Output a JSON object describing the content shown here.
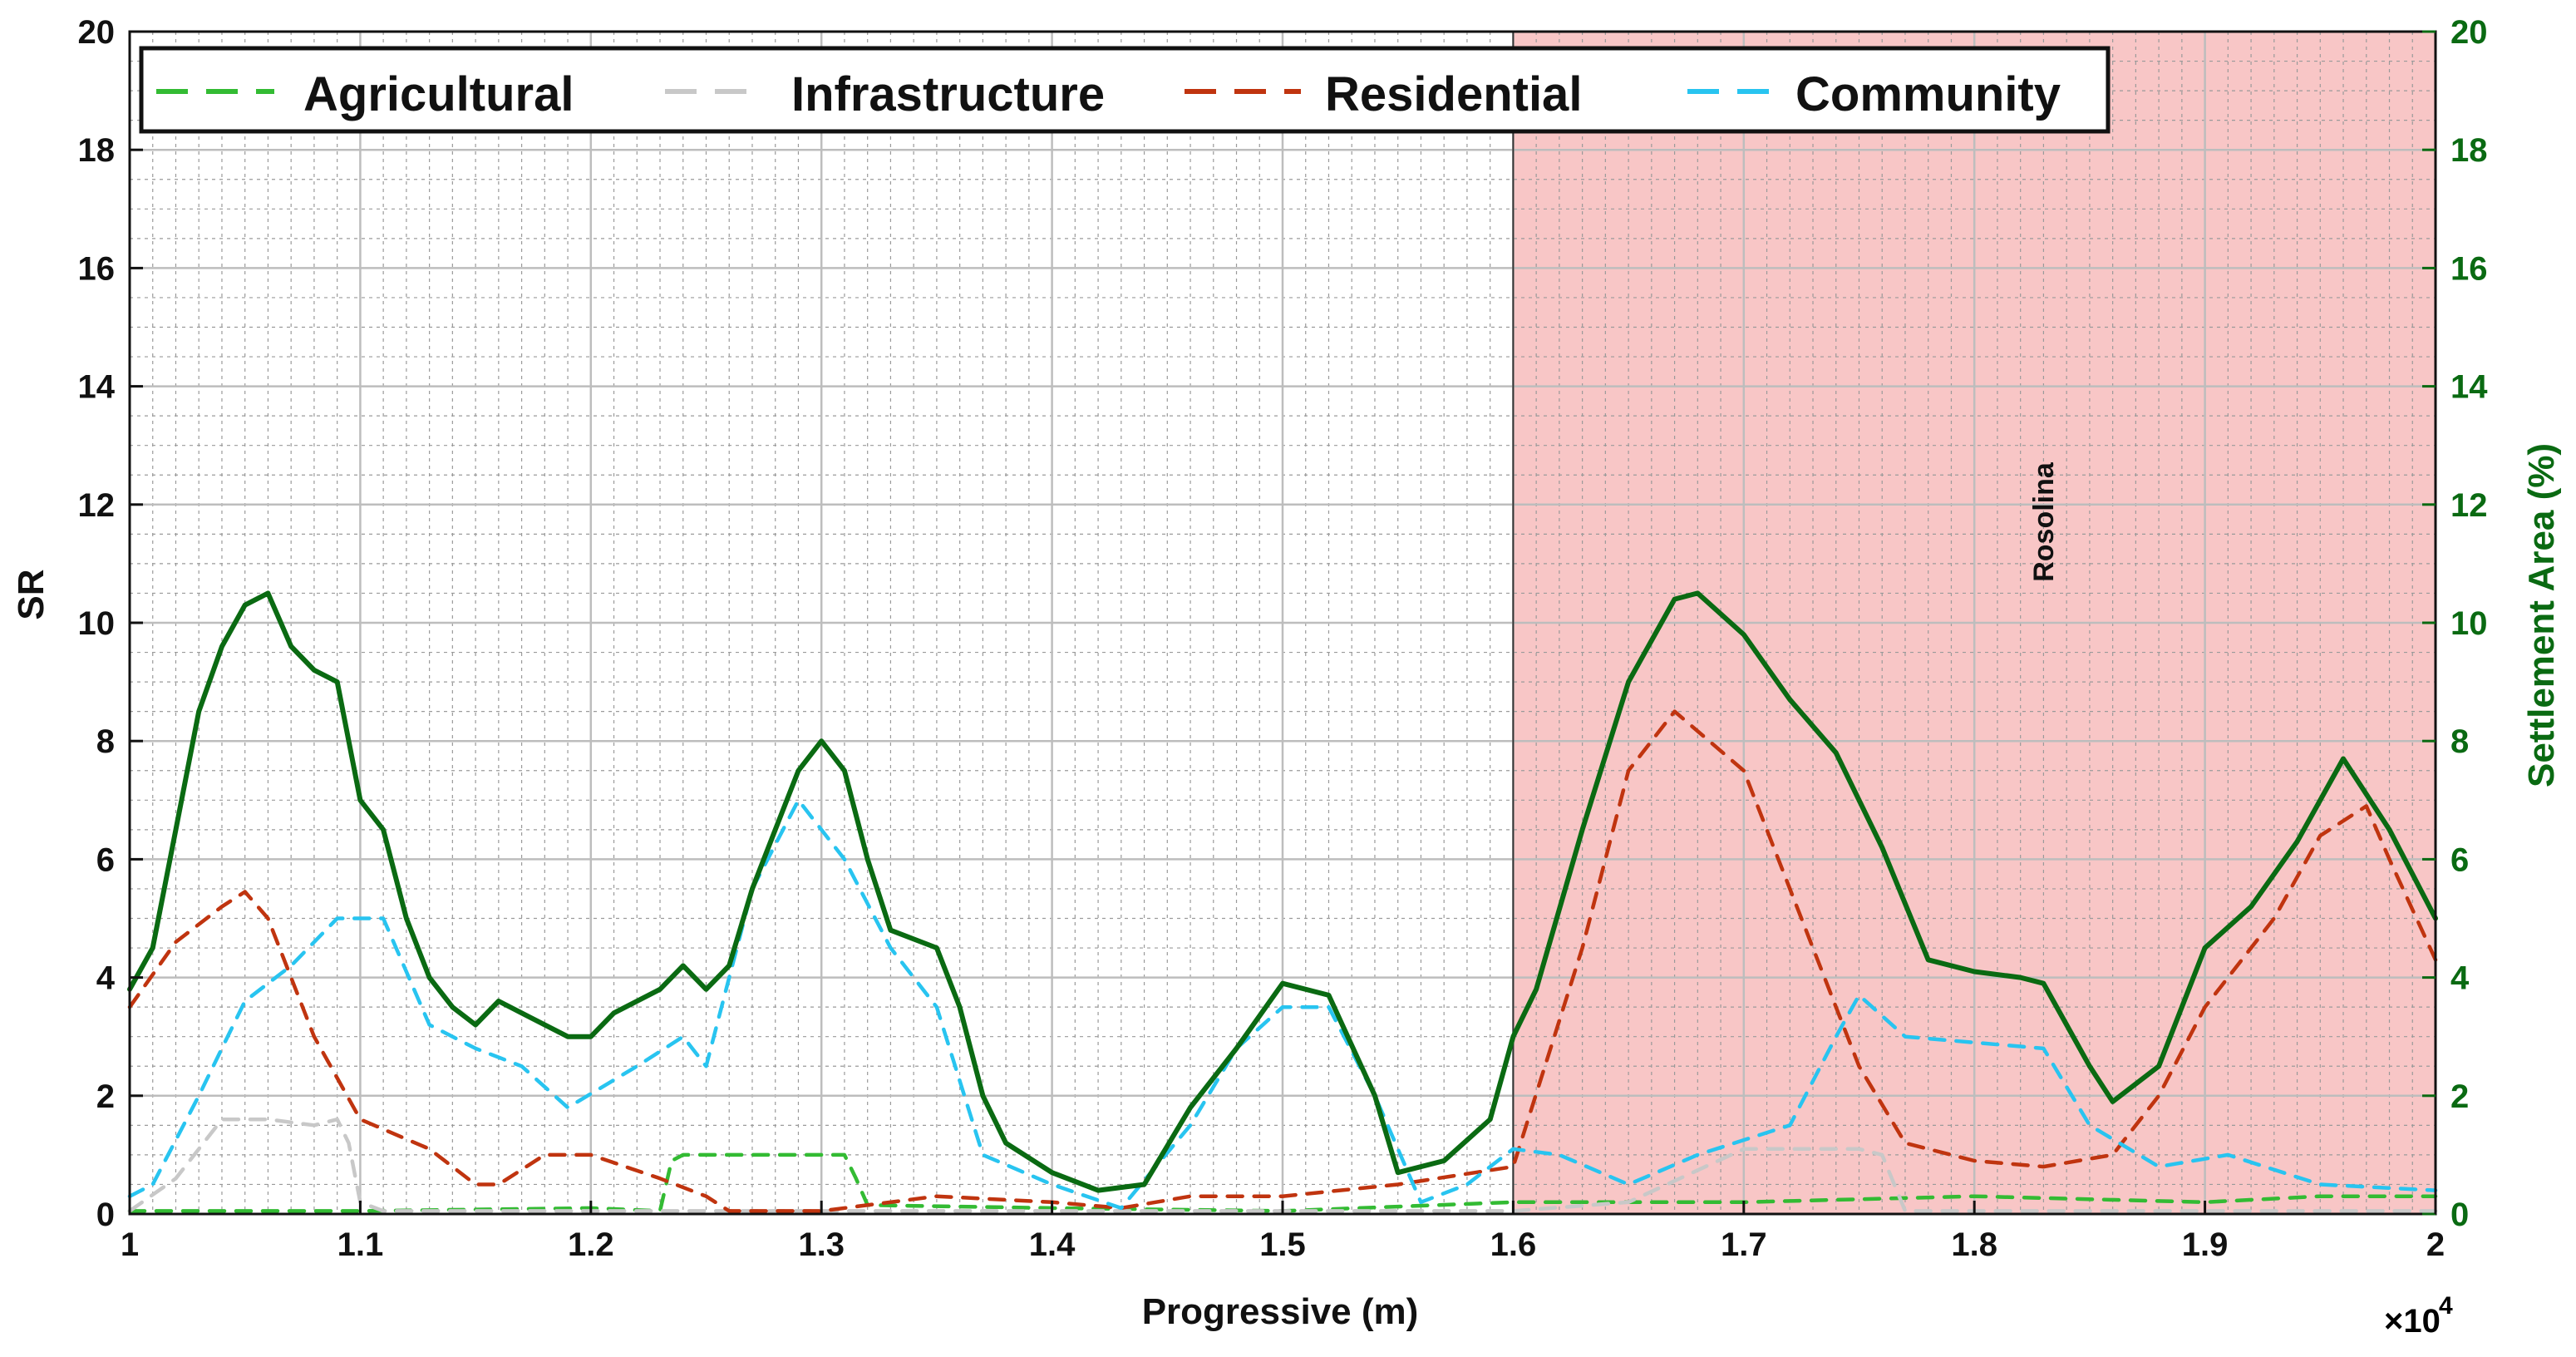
{
  "chart_data": {
    "type": "line",
    "title": "",
    "xlabel": "Progressive (m)",
    "ylabel_left": "SR",
    "ylabel_right": "Settlement Area (%)",
    "x_exponent_label": "×10",
    "x_exponent_power": "4",
    "xlim": [
      1,
      2
    ],
    "ylim": [
      0,
      20
    ],
    "x_ticks": [
      "1",
      "1.1",
      "1.2",
      "1.3",
      "1.4",
      "1.5",
      "1.6",
      "1.7",
      "1.8",
      "1.9",
      "2"
    ],
    "y_ticks": [
      "0",
      "2",
      "4",
      "6",
      "8",
      "10",
      "12",
      "14",
      "16",
      "18",
      "20"
    ],
    "grid": true,
    "minor_grid": true,
    "legend_position": "top",
    "shaded_region": {
      "x_start": 1.6,
      "x_end": 2.0,
      "color": "#f8c6c6",
      "label": "Rosolina"
    },
    "colors": {
      "agricultural": "#33bb33",
      "infrastructure": "#c8c8c8",
      "residential": "#c0340f",
      "community": "#28c4f0",
      "settlement": "#0a6a12",
      "right_axis": "#0a6a12",
      "left_axis": "#111111"
    },
    "series": [
      {
        "name": "Agricultural",
        "key": "agricultural",
        "style": "dashed",
        "x": [
          1.0,
          1.1,
          1.2,
          1.23,
          1.235,
          1.24,
          1.31,
          1.315,
          1.32,
          1.4,
          1.5,
          1.6,
          1.7,
          1.8,
          1.9,
          1.95,
          2.0
        ],
        "y": [
          0.05,
          0.05,
          0.1,
          0.05,
          0.9,
          1.0,
          1.0,
          0.6,
          0.15,
          0.1,
          0.05,
          0.2,
          0.2,
          0.3,
          0.2,
          0.3,
          0.3
        ]
      },
      {
        "name": "Infrastructure",
        "key": "infrastructure",
        "style": "dashed",
        "x": [
          1.0,
          1.02,
          1.04,
          1.06,
          1.08,
          1.09,
          1.095,
          1.1,
          1.11,
          1.4,
          1.6,
          1.65,
          1.7,
          1.75,
          1.76,
          1.77,
          1.8,
          2.0
        ],
        "y": [
          0.05,
          0.6,
          1.6,
          1.6,
          1.5,
          1.6,
          1.2,
          0.2,
          0.05,
          0.05,
          0.05,
          0.2,
          1.1,
          1.1,
          1.0,
          0.05,
          0.05,
          0.05
        ]
      },
      {
        "name": "Residential",
        "key": "residential",
        "style": "dashed",
        "x": [
          1.0,
          1.02,
          1.04,
          1.05,
          1.06,
          1.08,
          1.1,
          1.13,
          1.15,
          1.16,
          1.18,
          1.2,
          1.23,
          1.25,
          1.26,
          1.3,
          1.35,
          1.4,
          1.43,
          1.46,
          1.5,
          1.55,
          1.6,
          1.63,
          1.65,
          1.67,
          1.7,
          1.72,
          1.75,
          1.77,
          1.8,
          1.83,
          1.86,
          1.88,
          1.9,
          1.93,
          1.95,
          1.97,
          1.98,
          2.0
        ],
        "y": [
          3.5,
          4.6,
          5.2,
          5.45,
          5.0,
          3.0,
          1.6,
          1.1,
          0.5,
          0.5,
          1.0,
          1.0,
          0.6,
          0.3,
          0.05,
          0.05,
          0.3,
          0.2,
          0.1,
          0.3,
          0.3,
          0.5,
          0.8,
          4.5,
          7.5,
          8.5,
          7.5,
          5.5,
          2.5,
          1.2,
          0.9,
          0.8,
          1.0,
          2.0,
          3.5,
          5.0,
          6.4,
          6.9,
          6.0,
          4.3
        ]
      },
      {
        "name": "Community",
        "key": "community",
        "style": "dashed",
        "x": [
          1.0,
          1.01,
          1.03,
          1.05,
          1.07,
          1.09,
          1.11,
          1.13,
          1.15,
          1.17,
          1.19,
          1.22,
          1.24,
          1.25,
          1.27,
          1.29,
          1.31,
          1.33,
          1.35,
          1.37,
          1.4,
          1.43,
          1.46,
          1.48,
          1.5,
          1.52,
          1.54,
          1.56,
          1.58,
          1.6,
          1.62,
          1.65,
          1.68,
          1.72,
          1.74,
          1.75,
          1.77,
          1.8,
          1.83,
          1.85,
          1.88,
          1.91,
          1.95,
          2.0
        ],
        "y": [
          0.3,
          0.5,
          2.0,
          3.6,
          4.2,
          5.0,
          5.0,
          3.2,
          2.8,
          2.5,
          1.8,
          2.5,
          3.0,
          2.5,
          5.5,
          7.0,
          6.0,
          4.5,
          3.5,
          1.0,
          0.5,
          0.1,
          1.5,
          2.8,
          3.5,
          3.5,
          2.0,
          0.2,
          0.5,
          1.1,
          1.0,
          0.5,
          1.0,
          1.5,
          3.0,
          3.7,
          3.0,
          2.9,
          2.8,
          1.5,
          0.8,
          1.0,
          0.5,
          0.4
        ]
      },
      {
        "name": "Settlement Area",
        "key": "settlement",
        "style": "solid",
        "x": [
          1.0,
          1.01,
          1.02,
          1.03,
          1.04,
          1.05,
          1.06,
          1.07,
          1.08,
          1.09,
          1.1,
          1.11,
          1.12,
          1.13,
          1.14,
          1.15,
          1.16,
          1.17,
          1.19,
          1.2,
          1.21,
          1.23,
          1.24,
          1.25,
          1.26,
          1.27,
          1.28,
          1.29,
          1.3,
          1.31,
          1.32,
          1.33,
          1.35,
          1.36,
          1.37,
          1.38,
          1.4,
          1.42,
          1.44,
          1.46,
          1.48,
          1.5,
          1.52,
          1.54,
          1.55,
          1.57,
          1.59,
          1.6,
          1.61,
          1.63,
          1.65,
          1.67,
          1.68,
          1.7,
          1.72,
          1.74,
          1.76,
          1.78,
          1.8,
          1.82,
          1.83,
          1.84,
          1.85,
          1.86,
          1.88,
          1.9,
          1.92,
          1.94,
          1.96,
          1.98,
          2.0
        ],
        "y": [
          3.8,
          4.5,
          6.5,
          8.5,
          9.6,
          10.3,
          10.5,
          9.6,
          9.2,
          9.0,
          7.0,
          6.5,
          5.0,
          4.0,
          3.5,
          3.2,
          3.6,
          3.4,
          3.0,
          3.0,
          3.4,
          3.8,
          4.2,
          3.8,
          4.2,
          5.5,
          6.5,
          7.5,
          8.0,
          7.5,
          6.0,
          4.8,
          4.5,
          3.5,
          2.0,
          1.2,
          0.7,
          0.4,
          0.5,
          1.8,
          2.8,
          3.9,
          3.7,
          2.0,
          0.7,
          0.9,
          1.6,
          3.0,
          3.8,
          6.5,
          9.0,
          10.4,
          10.5,
          9.8,
          8.7,
          7.8,
          6.2,
          4.3,
          4.1,
          4.0,
          3.9,
          3.2,
          2.5,
          1.9,
          2.5,
          4.5,
          5.2,
          6.3,
          7.7,
          6.5,
          5.0
        ]
      }
    ],
    "legend_entries": [
      "Agricultural",
      "Infrastructure",
      "Residential",
      "Community"
    ]
  }
}
